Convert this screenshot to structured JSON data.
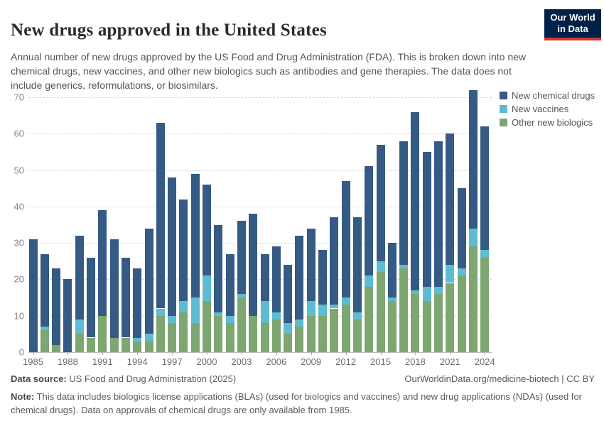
{
  "header": {
    "title": "New drugs approved in the United States",
    "subtitle": "Annual number of new drugs approved by the US Food and Drug Administration (FDA). This is broken down into new chemical drugs, new vaccines, and other new biologics such as antibodies and gene therapies. The data does not include generics, reformulations, or biosimilars.",
    "logo": {
      "line1": "Our World",
      "line2": "in Data",
      "bg_color": "#002147",
      "accent_color": "#d8352e"
    }
  },
  "chart_data": {
    "type": "bar",
    "stacked": true,
    "title": "New drugs approved in the United States",
    "xlabel": "",
    "ylabel": "",
    "ylim": [
      0,
      70
    ],
    "yticks": [
      0,
      10,
      20,
      30,
      40,
      50,
      60,
      70
    ],
    "grid": "dashed-horizontal",
    "legend_position": "right",
    "stack_order_bottom_to_top": [
      "Other new biologics",
      "New vaccines",
      "New chemical drugs"
    ],
    "categories": [
      1985,
      1986,
      1987,
      1988,
      1989,
      1990,
      1991,
      1992,
      1993,
      1994,
      1995,
      1996,
      1997,
      1998,
      1999,
      2000,
      2001,
      2002,
      2003,
      2004,
      2005,
      2006,
      2007,
      2008,
      2009,
      2010,
      2011,
      2012,
      2013,
      2014,
      2015,
      2016,
      2017,
      2018,
      2019,
      2020,
      2021,
      2022,
      2023,
      2024
    ],
    "xtick_labels": [
      "1985",
      "1988",
      "1991",
      "1994",
      "1997",
      "2000",
      "2003",
      "2006",
      "2009",
      "2012",
      "2015",
      "2018",
      "2021",
      "2024"
    ],
    "series": [
      {
        "name": "New chemical drugs",
        "color": "#355a83",
        "values": [
          31,
          20,
          21,
          20,
          23,
          22,
          29,
          27,
          22,
          19,
          29,
          51,
          38,
          28,
          34,
          25,
          24,
          17,
          20,
          28,
          13,
          18,
          16,
          23,
          20,
          15,
          24,
          32,
          26,
          30,
          32,
          15,
          34,
          49,
          37,
          40,
          36,
          22,
          38,
          34
        ]
      },
      {
        "name": "New vaccines",
        "color": "#5ebcd2",
        "values": [
          0,
          1,
          0,
          0,
          4,
          0,
          0,
          0,
          0,
          1,
          2,
          2,
          2,
          3,
          7,
          7,
          1,
          2,
          1,
          0,
          6,
          2,
          3,
          2,
          4,
          3,
          1,
          2,
          2,
          3,
          3,
          1,
          1,
          1,
          4,
          2,
          5,
          2,
          5,
          2
        ]
      },
      {
        "name": "Other new biologics",
        "color": "#7da671",
        "values": [
          0,
          6,
          2,
          0,
          5,
          4,
          10,
          4,
          4,
          3,
          3,
          10,
          8,
          11,
          8,
          14,
          10,
          8,
          15,
          10,
          8,
          9,
          5,
          7,
          10,
          10,
          12,
          13,
          9,
          18,
          22,
          14,
          23,
          16,
          14,
          16,
          19,
          21,
          29,
          26
        ]
      }
    ],
    "totals": [
      31,
      27,
      23,
      20,
      32,
      26,
      39,
      31,
      26,
      23,
      34,
      63,
      48,
      42,
      49,
      46,
      35,
      27,
      36,
      38,
      27,
      29,
      24,
      32,
      34,
      28,
      37,
      47,
      37,
      51,
      57,
      30,
      58,
      66,
      55,
      58,
      60,
      45,
      72,
      62
    ]
  },
  "footer": {
    "source_label": "Data source:",
    "source_value": "US Food and Drug Administration (2025)",
    "link": "OurWorldinData.org/medicine-biotech | CC BY",
    "note_label": "Note:",
    "note_value": "This data includes biologics license applications (BLAs) (used for biologics and vaccines) and new drug applications (NDAs) (used for chemical drugs). Data on approvals of chemical drugs are only available from 1985."
  }
}
